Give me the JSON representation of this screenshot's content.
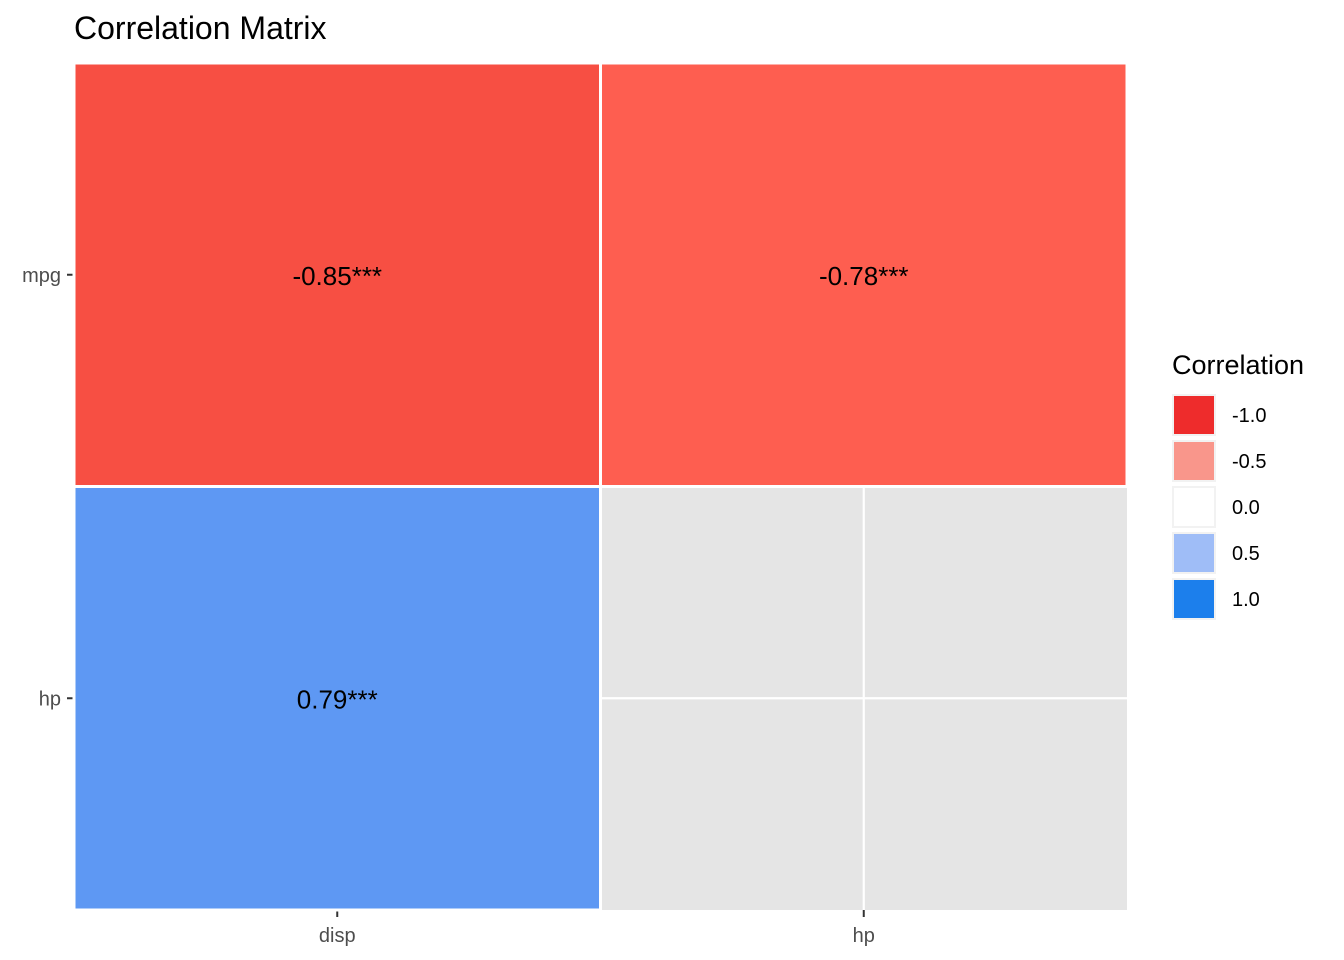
{
  "chart_data": {
    "type": "heatmap",
    "title": "Correlation Matrix",
    "x_categories": [
      "disp",
      "hp"
    ],
    "y_categories": [
      "mpg",
      "hp"
    ],
    "cells": [
      {
        "x": "disp",
        "y": "mpg",
        "value": -0.85,
        "label": "-0.85***"
      },
      {
        "x": "hp",
        "y": "mpg",
        "value": -0.78,
        "label": "-0.78***"
      },
      {
        "x": "disp",
        "y": "hp",
        "value": 0.79,
        "label": "0.79***"
      }
    ],
    "legend": {
      "title": "Correlation",
      "placement": "right",
      "entries": [
        {
          "label": "-1.0",
          "value": -1.0,
          "color": "#ee2c2c"
        },
        {
          "label": "-0.5",
          "value": -0.5,
          "color": "#f9968b"
        },
        {
          "label": "0.0",
          "value": 0.0,
          "color": "#ffffff"
        },
        {
          "label": "0.5",
          "value": 0.5,
          "color": "#9fbdf7"
        },
        {
          "label": "1.0",
          "value": 1.0,
          "color": "#1c7fec"
        }
      ]
    },
    "cell_colors": {
      "disp|mpg": "#f74f43",
      "hp|mpg": "#fe5e50",
      "disp|hp": "#5e98f3"
    },
    "panel_background": "#e5e5e5",
    "grid": true
  }
}
